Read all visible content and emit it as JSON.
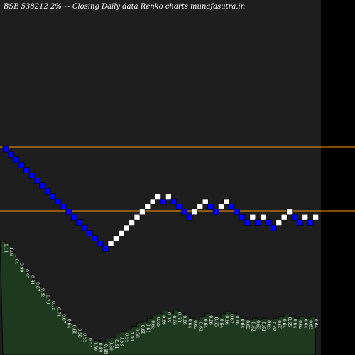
{
  "chart_data": {
    "type": "renko",
    "title": "BSE 538212  2%~-  Closing Daily data  Renko  charts munafasutra.in",
    "colors": {
      "background": "#000000",
      "panel": "#1e1e1e",
      "up_brick": "#ffffff",
      "down_brick": "#0000ff",
      "brick_border": "#000000",
      "reference_line": "#ff9900",
      "volume_fill": "#1e3a1e",
      "volume_stroke": "#000000"
    },
    "reference_lines": [
      {
        "name": "upper-reference-line"
      },
      {
        "name": "lower-reference-line"
      }
    ],
    "bricks": [
      {
        "dir": "down",
        "level": 0
      },
      {
        "dir": "down",
        "level": -1
      },
      {
        "dir": "down",
        "level": -2
      },
      {
        "dir": "down",
        "level": -3
      },
      {
        "dir": "down",
        "level": -4
      },
      {
        "dir": "down",
        "level": -5
      },
      {
        "dir": "down",
        "level": -6
      },
      {
        "dir": "down",
        "level": -7
      },
      {
        "dir": "down",
        "level": -8
      },
      {
        "dir": "down",
        "level": -9
      },
      {
        "dir": "down",
        "level": -10
      },
      {
        "dir": "down",
        "level": -11
      },
      {
        "dir": "down",
        "level": -12
      },
      {
        "dir": "down",
        "level": -13
      },
      {
        "dir": "down",
        "level": -14
      },
      {
        "dir": "down",
        "level": -15
      },
      {
        "dir": "down",
        "level": -16
      },
      {
        "dir": "down",
        "level": -17
      },
      {
        "dir": "down",
        "level": -18
      },
      {
        "dir": "down",
        "level": -19
      },
      {
        "dir": "up",
        "level": -18
      },
      {
        "dir": "up",
        "level": -17
      },
      {
        "dir": "up",
        "level": -16
      },
      {
        "dir": "up",
        "level": -15
      },
      {
        "dir": "up",
        "level": -14
      },
      {
        "dir": "up",
        "level": -13
      },
      {
        "dir": "up",
        "level": -12
      },
      {
        "dir": "up",
        "level": -11
      },
      {
        "dir": "up",
        "level": -10
      },
      {
        "dir": "up",
        "level": -9
      },
      {
        "dir": "down",
        "level": -10
      },
      {
        "dir": "up",
        "level": -9
      },
      {
        "dir": "down",
        "level": -10
      },
      {
        "dir": "down",
        "level": -11
      },
      {
        "dir": "down",
        "level": -12
      },
      {
        "dir": "down",
        "level": -13
      },
      {
        "dir": "up",
        "level": -12
      },
      {
        "dir": "up",
        "level": -11
      },
      {
        "dir": "up",
        "level": -10
      },
      {
        "dir": "down",
        "level": -11
      },
      {
        "dir": "down",
        "level": -12
      },
      {
        "dir": "up",
        "level": -11
      },
      {
        "dir": "up",
        "level": -10
      },
      {
        "dir": "down",
        "level": -11
      },
      {
        "dir": "down",
        "level": -12
      },
      {
        "dir": "down",
        "level": -13
      },
      {
        "dir": "down",
        "level": -14
      },
      {
        "dir": "up",
        "level": -13
      },
      {
        "dir": "down",
        "level": -14
      },
      {
        "dir": "up",
        "level": -13
      },
      {
        "dir": "down",
        "level": -14
      },
      {
        "dir": "down",
        "level": -15
      },
      {
        "dir": "up",
        "level": -14
      },
      {
        "dir": "up",
        "level": -13
      },
      {
        "dir": "up",
        "level": -12
      },
      {
        "dir": "down",
        "level": -13
      },
      {
        "dir": "down",
        "level": -14
      },
      {
        "dir": "up",
        "level": -13
      },
      {
        "dir": "down",
        "level": -14
      },
      {
        "dir": "up",
        "level": -13
      }
    ],
    "volume_labels": [
      "1.11",
      "1.09",
      "1.04",
      "0.99",
      "0.95",
      "0.91",
      "0.87",
      "0.83",
      "0.79",
      "0.75",
      "0.71",
      "0.67",
      "0.64",
      "0.60",
      "0.58",
      "0.55",
      "0.52",
      "0.50",
      "0.49",
      "0.48",
      "0.50",
      "0.51",
      "0.53",
      "0.55",
      "0.56",
      "0.58",
      "0.60",
      "0.61",
      "0.63",
      "0.65",
      "0.66",
      "0.68",
      "0.66",
      "0.68",
      "0.66",
      "0.64",
      "0.63",
      "0.62",
      "0.64",
      "0.66",
      "0.65",
      "0.64",
      "0.66",
      "0.67",
      "0.66",
      "0.64",
      "0.63",
      "0.62",
      "0.63",
      "0.62",
      "0.63",
      "0.62",
      "0.63",
      "0.64",
      "0.65",
      "0.64",
      "0.63",
      "0.64",
      "0.63",
      "0.64"
    ],
    "volume_values": [
      1.11,
      1.09,
      1.04,
      0.99,
      0.95,
      0.91,
      0.87,
      0.83,
      0.79,
      0.75,
      0.71,
      0.67,
      0.64,
      0.6,
      0.58,
      0.55,
      0.52,
      0.5,
      0.49,
      0.48,
      0.5,
      0.51,
      0.53,
      0.55,
      0.56,
      0.58,
      0.6,
      0.61,
      0.63,
      0.65,
      0.66,
      0.68,
      0.66,
      0.68,
      0.66,
      0.64,
      0.63,
      0.62,
      0.64,
      0.66,
      0.65,
      0.64,
      0.66,
      0.67,
      0.66,
      0.64,
      0.63,
      0.62,
      0.63,
      0.62,
      0.63,
      0.62,
      0.63,
      0.64,
      0.65,
      0.64,
      0.63,
      0.64,
      0.63,
      0.64
    ]
  }
}
